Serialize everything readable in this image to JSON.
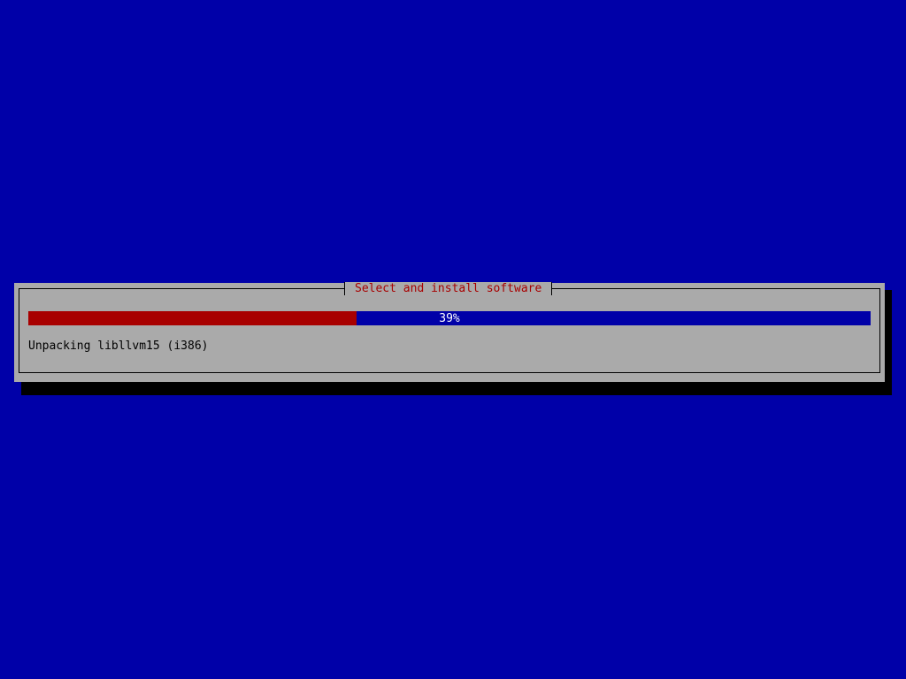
{
  "dialog": {
    "title": "Select and install software",
    "progress": {
      "percent": 39,
      "label": "39%"
    },
    "status": "Unpacking libllvm15 (i386)"
  },
  "colors": {
    "background": "#0000a8",
    "dialog": "#aaaaaa",
    "progress_fill": "#a80000",
    "title": "#a80000"
  }
}
